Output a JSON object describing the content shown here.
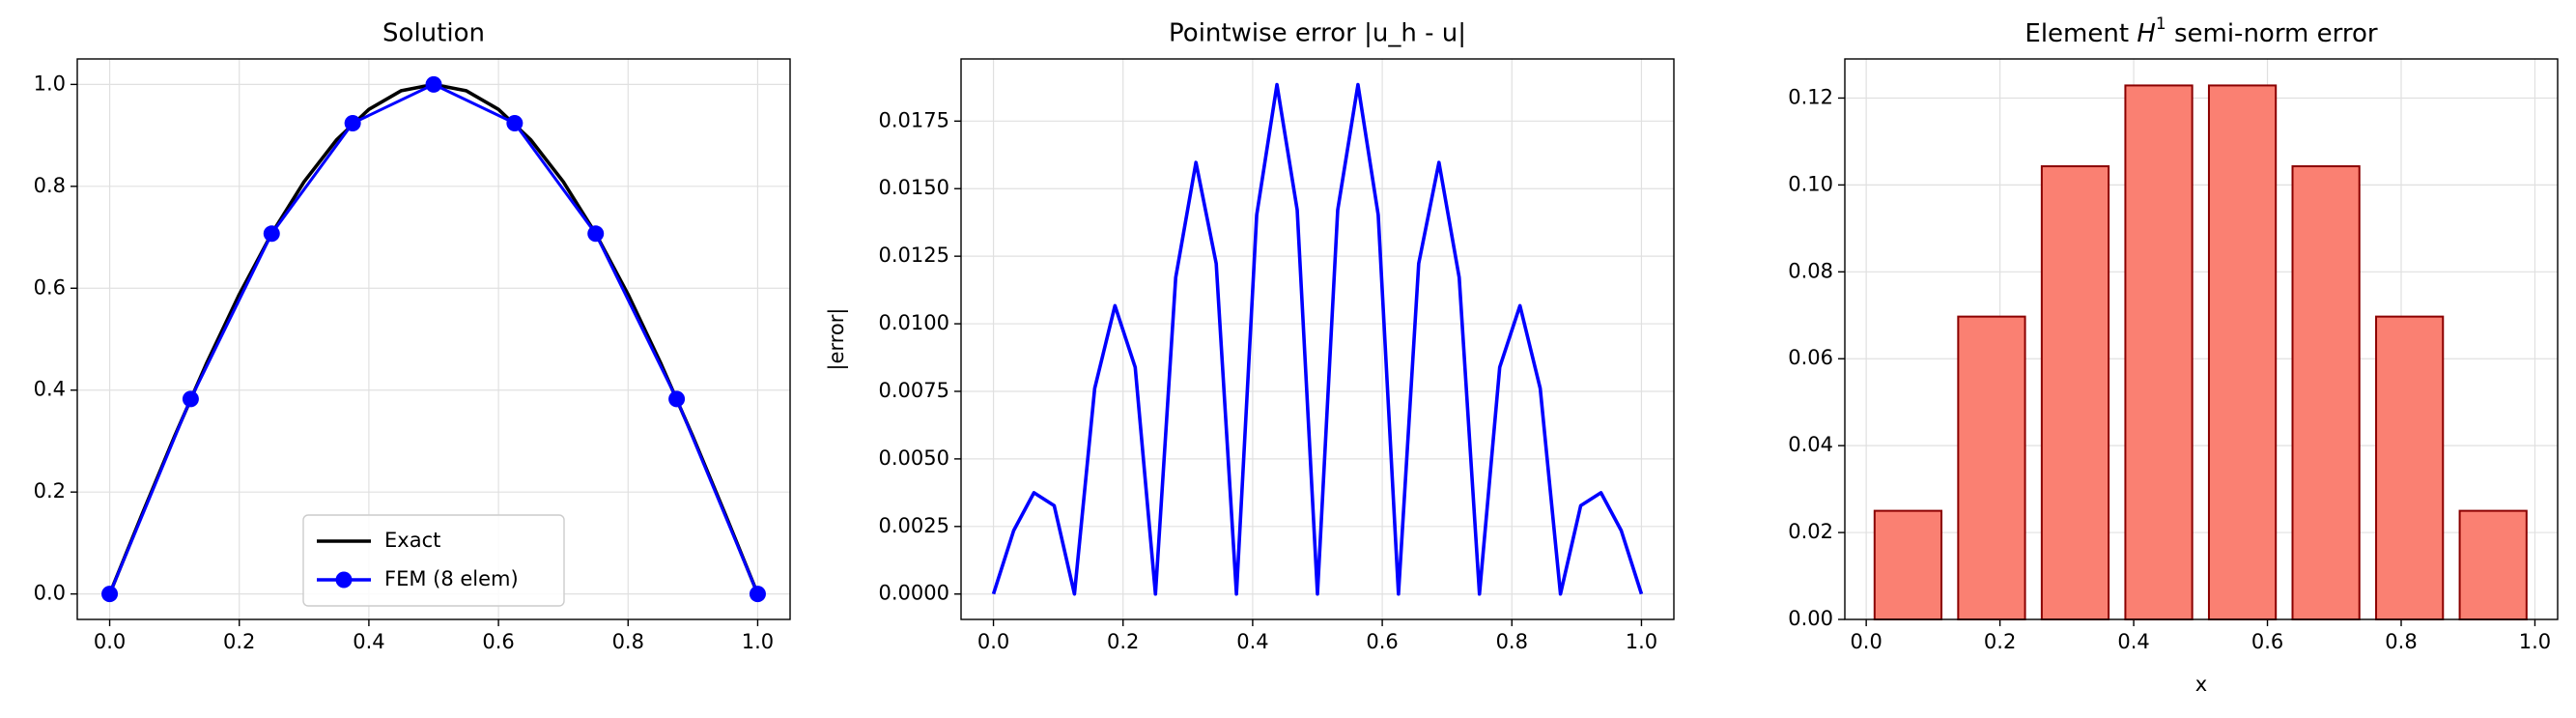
{
  "chart_data": [
    {
      "type": "line",
      "title": "Solution",
      "xlim": [
        -0.05,
        1.05
      ],
      "ylim": [
        -0.05,
        1.05
      ],
      "xticks": [
        {
          "value": 0,
          "label": "0.0"
        },
        0.2,
        0.4,
        0.6,
        0.8,
        {
          "value": 1,
          "label": "1.0"
        }
      ],
      "yticks": [
        {
          "value": 0,
          "label": "0.0"
        },
        0.2,
        0.4,
        0.6,
        0.8,
        {
          "value": 1,
          "label": "1.0"
        }
      ],
      "grid": true,
      "legend": "lower center",
      "series": [
        {
          "name": "Exact",
          "color": "#000000",
          "marker": "none",
          "x": [
            0,
            0.05,
            0.1,
            0.15,
            0.2,
            0.25,
            0.3,
            0.35,
            0.4,
            0.45,
            0.5,
            0.55,
            0.6,
            0.65,
            0.7,
            0.75,
            0.8,
            0.85,
            0.9,
            0.95,
            1
          ],
          "values": [
            0,
            0.1564,
            0.309,
            0.454,
            0.5878,
            0.7071,
            0.809,
            0.891,
            0.9511,
            0.9877,
            1,
            0.9877,
            0.9511,
            0.891,
            0.809,
            0.7071,
            0.5878,
            0.454,
            0.309,
            0.1564,
            0
          ]
        },
        {
          "name": "FEM (8 elem)",
          "color": "#0000ff",
          "marker": "circle",
          "x": [
            0,
            0.125,
            0.25,
            0.375,
            0.5,
            0.625,
            0.75,
            0.875,
            1
          ],
          "values": [
            0,
            0.3827,
            0.7071,
            0.9239,
            1,
            0.9239,
            0.7071,
            0.3827,
            0
          ]
        }
      ]
    },
    {
      "type": "line",
      "title": "Pointwise error |u_h - u|",
      "ylabel": "|error|",
      "xlim": [
        -0.05,
        1.05
      ],
      "ylim": [
        -0.00094,
        0.0198
      ],
      "xticks": [
        {
          "value": 0,
          "label": "0.0"
        },
        0.2,
        0.4,
        0.6,
        0.8,
        {
          "value": 1,
          "label": "1.0"
        }
      ],
      "yticks": [
        {
          "value": 0,
          "label": "0.0000"
        },
        {
          "value": 0.0025,
          "label": "0.0025"
        },
        {
          "value": 0.005,
          "label": "0.0050"
        },
        {
          "value": 0.0075,
          "label": "0.0075"
        },
        {
          "value": 0.01,
          "label": "0.0100"
        },
        {
          "value": 0.0125,
          "label": "0.0125"
        },
        {
          "value": 0.015,
          "label": "0.0150"
        },
        {
          "value": 0.0175,
          "label": "0.0175"
        }
      ],
      "grid": true,
      "color": "#0000ff",
      "x": [
        0,
        0.03125,
        0.0625,
        0.09375,
        0.125,
        0.15625,
        0.1875,
        0.21875,
        0.25,
        0.28125,
        0.3125,
        0.34375,
        0.375,
        0.40625,
        0.4375,
        0.46875,
        0.5,
        0.53125,
        0.5625,
        0.59375,
        0.625,
        0.65625,
        0.6875,
        0.71875,
        0.75,
        0.78125,
        0.8125,
        0.84375,
        0.875,
        0.90625,
        0.9375,
        0.96875,
        1
      ],
      "values": [
        0,
        0.00235,
        0.00375,
        0.00327,
        0,
        0.00761,
        0.01067,
        0.00839,
        0,
        0.01171,
        0.01597,
        0.01223,
        0,
        0.01403,
        0.01885,
        0.01421,
        0,
        0.01421,
        0.01885,
        0.01403,
        0,
        0.01223,
        0.01597,
        0.01171,
        0,
        0.00839,
        0.01067,
        0.00761,
        0,
        0.00327,
        0.00375,
        0.00235,
        0
      ]
    },
    {
      "type": "bar",
      "title_parts": [
        "Element ",
        "H",
        "1",
        " semi-norm error"
      ],
      "xlabel": "x",
      "xlim": [
        -0.032,
        1.034
      ],
      "ylim": [
        0,
        0.129
      ],
      "xticks": [
        {
          "value": 0,
          "label": "0.0"
        },
        0.2,
        0.4,
        0.6,
        0.8,
        {
          "value": 1,
          "label": "1.0"
        }
      ],
      "yticks": [
        {
          "value": 0,
          "label": "0.00"
        },
        {
          "value": 0.02,
          "label": "0.02"
        },
        {
          "value": 0.04,
          "label": "0.04"
        },
        {
          "value": 0.06,
          "label": "0.06"
        },
        {
          "value": 0.08,
          "label": "0.08"
        },
        {
          "value": 0.1,
          "label": "0.10"
        },
        {
          "value": 0.12,
          "label": "0.12"
        }
      ],
      "grid": true,
      "color": "#fa8072",
      "edgecolor": "#8b0000",
      "x": [
        0.0625,
        0.1875,
        0.3125,
        0.4375,
        0.5625,
        0.6875,
        0.8125,
        0.9375
      ],
      "values": [
        0.025,
        0.0697,
        0.1043,
        0.1229,
        0.1229,
        0.1043,
        0.0697,
        0.025
      ]
    }
  ]
}
